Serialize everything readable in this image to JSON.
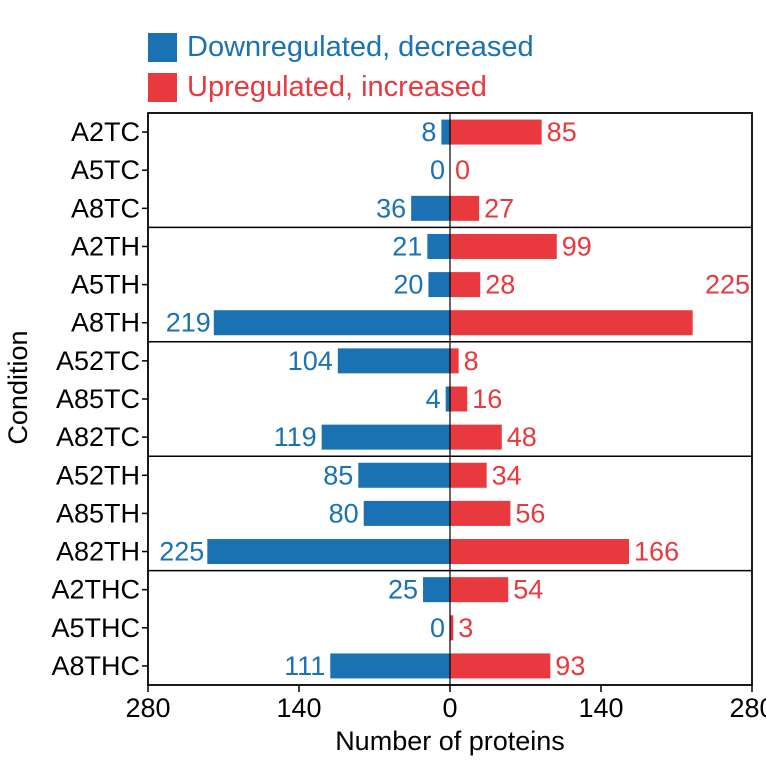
{
  "colors": {
    "down": "#1a72b2",
    "up": "#e8393f"
  },
  "chart_data": {
    "type": "bar",
    "orientation": "horizontal-diverging",
    "title": "",
    "xlabel": "Number of proteins",
    "ylabel": "Condition",
    "xlim": [
      -280,
      280
    ],
    "xticks": [
      -280,
      -140,
      0,
      140,
      280
    ],
    "xtick_labels": [
      "280",
      "140",
      "0",
      "140",
      "280"
    ],
    "legend": {
      "position": "top-left",
      "entries": [
        "Downregulated, decreased",
        "Upregulated, increased"
      ]
    },
    "categories": [
      "A2TC",
      "A5TC",
      "A8TC",
      "A2TH",
      "A5TH",
      "A8TH",
      "A52TC",
      "A85TC",
      "A82TC",
      "A52TH",
      "A85TH",
      "A82TH",
      "A2THC",
      "A5THC",
      "A8THC"
    ],
    "groups": [
      3,
      3,
      3,
      3,
      3
    ],
    "series": [
      {
        "name": "Downregulated, decreased",
        "values": [
          8,
          0,
          36,
          21,
          20,
          219,
          104,
          4,
          119,
          85,
          80,
          225,
          25,
          0,
          111
        ]
      },
      {
        "name": "Upregulated, increased",
        "values": [
          85,
          0,
          27,
          99,
          28,
          225,
          8,
          16,
          48,
          34,
          56,
          166,
          54,
          3,
          93
        ]
      }
    ]
  }
}
